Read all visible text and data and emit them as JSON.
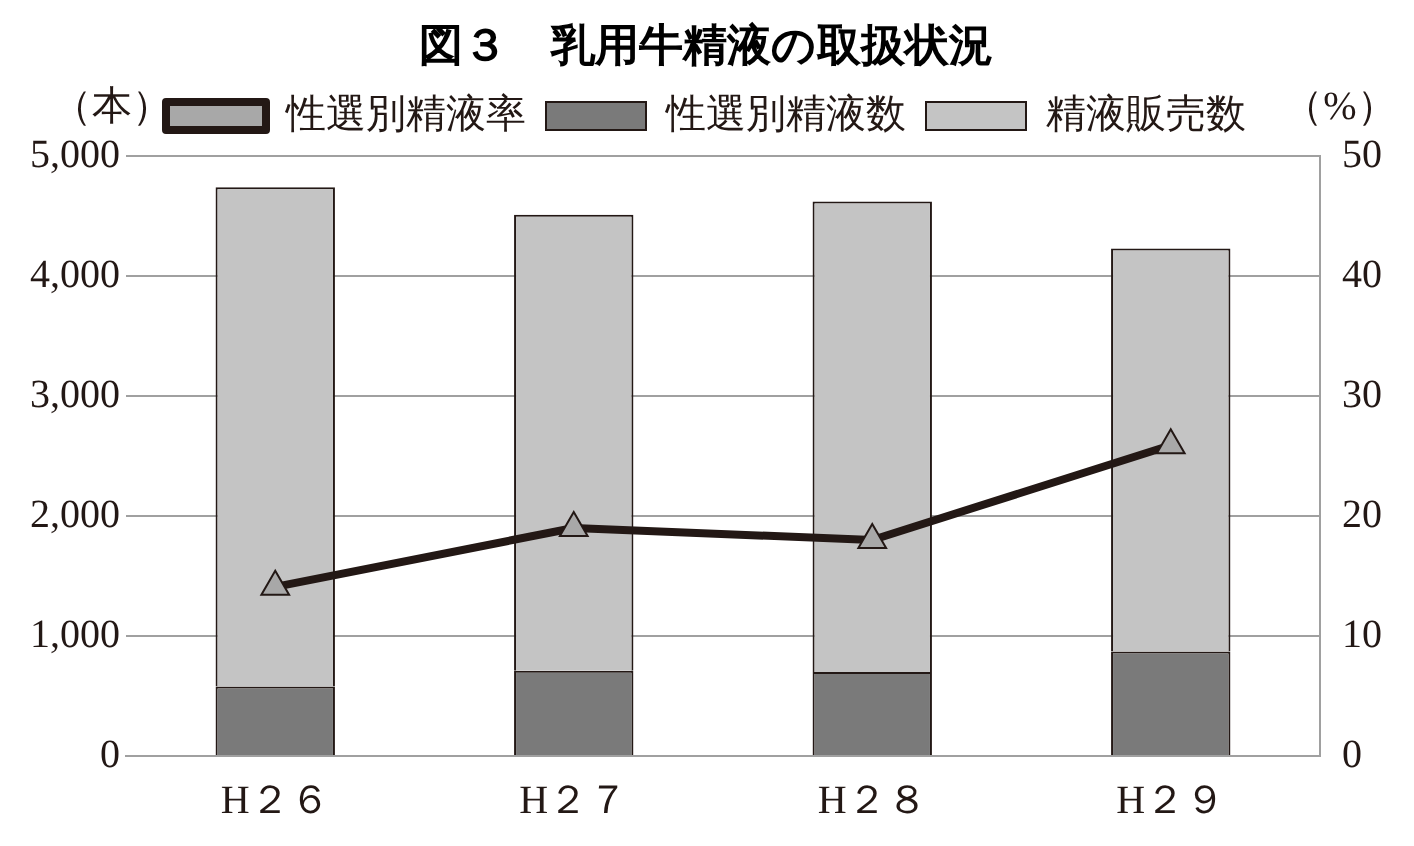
{
  "chart_data": {
    "type": "bar",
    "title": "図３　乳用牛精液の取扱状況",
    "ylabel": "（本）",
    "y2label": "（%）",
    "categories": [
      "H２６",
      "H２７",
      "H２８",
      "H２９"
    ],
    "stacked": true,
    "series": [
      {
        "name": "性選別精液数",
        "color": "#7a7a7a",
        "values": [
          580,
          710,
          700,
          870
        ]
      },
      {
        "name": "精液販売数",
        "color": "#c4c4c4",
        "values": [
          4160,
          3800,
          3920,
          3360
        ]
      },
      {
        "name": "性選別精液率",
        "type": "line",
        "axis": "y2",
        "color": "#231815",
        "marker": "triangle",
        "values": [
          14.1,
          19.0,
          18.0,
          25.9
        ]
      }
    ],
    "ylim": [
      0,
      5000
    ],
    "yticks": [
      {
        "value": 0,
        "label": "0"
      },
      {
        "value": 1000,
        "label": "1,000"
      },
      {
        "value": 2000,
        "label": "2,000"
      },
      {
        "value": 3000,
        "label": "3,000"
      },
      {
        "value": 4000,
        "label": "4,000"
      },
      {
        "value": 5000,
        "label": "5,000"
      }
    ],
    "y2lim": [
      0,
      50
    ],
    "y2ticks": [
      0,
      10,
      20,
      30,
      40,
      50
    ],
    "grid": "y",
    "legend": "top"
  }
}
